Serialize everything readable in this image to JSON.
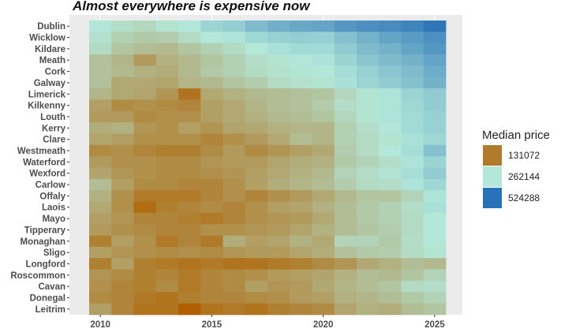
{
  "chart_data": {
    "type": "heatmap",
    "title": "Almost everywhere is expensive now",
    "xlabel": "",
    "ylabel": "",
    "x_ticks": [
      "2010",
      "2015",
      "2020",
      "2025"
    ],
    "x_tick_values": [
      2010,
      2015,
      2020,
      2025
    ],
    "x_range": [
      2009.5,
      2025.5
    ],
    "grid": true,
    "legend": {
      "title": "Median price",
      "placement": "right",
      "scale": "log2",
      "entries": [
        {
          "label": "131072",
          "value": 131072,
          "color": "#b07b2a"
        },
        {
          "label": "262144",
          "value": 262144,
          "color": "#b3e8d9"
        },
        {
          "label": "524288",
          "value": 524288,
          "color": "#2971b8"
        }
      ]
    },
    "years": [
      2010,
      2011,
      2012,
      2013,
      2014,
      2015,
      2016,
      2017,
      2018,
      2019,
      2020,
      2021,
      2022,
      2023,
      2024,
      2025
    ],
    "counties": [
      "Dublin",
      "Wicklow",
      "Kildare",
      "Meath",
      "Cork",
      "Galway",
      "Limerick",
      "Kilkenny",
      "Louth",
      "Kerry",
      "Clare",
      "Westmeath",
      "Waterford",
      "Wexford",
      "Carlow",
      "Offaly",
      "Laois",
      "Mayo",
      "Tipperary",
      "Monaghan",
      "Sligo",
      "Longford",
      "Roscommon",
      "Cavan",
      "Donegal",
      "Leitrim"
    ],
    "values": [
      [
        265000,
        245000,
        235000,
        255000,
        265000,
        295000,
        305000,
        340000,
        365000,
        380000,
        390000,
        420000,
        440000,
        450000,
        470000,
        510000
      ],
      [
        250000,
        225000,
        215000,
        220000,
        240000,
        260000,
        270000,
        290000,
        300000,
        305000,
        300000,
        330000,
        360000,
        390000,
        410000,
        440000
      ],
      [
        240000,
        210000,
        200000,
        195000,
        210000,
        225000,
        240000,
        260000,
        275000,
        285000,
        285000,
        310000,
        340000,
        360000,
        390000,
        420000
      ],
      [
        205000,
        190000,
        160000,
        185000,
        195000,
        210000,
        225000,
        245000,
        255000,
        265000,
        270000,
        295000,
        320000,
        340000,
        360000,
        390000
      ],
      [
        205000,
        195000,
        185000,
        180000,
        195000,
        215000,
        225000,
        240000,
        250000,
        258000,
        260000,
        280000,
        300000,
        320000,
        340000,
        370000
      ],
      [
        205000,
        175000,
        175000,
        170000,
        190000,
        195000,
        210000,
        220000,
        240000,
        250000,
        255000,
        275000,
        295000,
        310000,
        330000,
        360000
      ],
      [
        190000,
        175000,
        170000,
        155000,
        125000,
        175000,
        185000,
        195000,
        200000,
        205000,
        210000,
        235000,
        255000,
        270000,
        295000,
        310000
      ],
      [
        165000,
        145000,
        150000,
        145000,
        140000,
        165000,
        175000,
        190000,
        200000,
        205000,
        220000,
        245000,
        255000,
        270000,
        290000,
        310000
      ],
      [
        160000,
        160000,
        145000,
        150000,
        150000,
        165000,
        175000,
        185000,
        195000,
        200000,
        210000,
        235000,
        255000,
        270000,
        285000,
        300000
      ],
      [
        180000,
        185000,
        155000,
        150000,
        165000,
        155000,
        170000,
        175000,
        185000,
        190000,
        190000,
        225000,
        245000,
        265000,
        285000,
        300000
      ],
      [
        170000,
        165000,
        150000,
        150000,
        150000,
        140000,
        150000,
        160000,
        175000,
        200000,
        190000,
        225000,
        240000,
        255000,
        275000,
        290000
      ],
      [
        145000,
        150000,
        140000,
        135000,
        135000,
        145000,
        160000,
        145000,
        155000,
        165000,
        175000,
        220000,
        240000,
        260000,
        280000,
        330000
      ],
      [
        160000,
        150000,
        150000,
        145000,
        145000,
        155000,
        160000,
        160000,
        170000,
        180000,
        185000,
        215000,
        230000,
        245000,
        270000,
        295000
      ],
      [
        170000,
        155000,
        150000,
        145000,
        145000,
        150000,
        155000,
        165000,
        175000,
        185000,
        195000,
        230000,
        245000,
        255000,
        280000,
        310000
      ],
      [
        200000,
        165000,
        145000,
        145000,
        140000,
        140000,
        150000,
        165000,
        180000,
        190000,
        200000,
        220000,
        240000,
        245000,
        270000,
        290000
      ],
      [
        185000,
        150000,
        130000,
        130000,
        130000,
        140000,
        150000,
        140000,
        150000,
        160000,
        175000,
        195000,
        210000,
        210000,
        230000,
        270000
      ],
      [
        175000,
        150000,
        120000,
        135000,
        140000,
        145000,
        140000,
        150000,
        165000,
        170000,
        185000,
        200000,
        215000,
        225000,
        245000,
        275000
      ],
      [
        165000,
        155000,
        140000,
        140000,
        135000,
        130000,
        140000,
        150000,
        155000,
        160000,
        175000,
        200000,
        215000,
        225000,
        240000,
        260000
      ],
      [
        160000,
        150000,
        145000,
        140000,
        140000,
        150000,
        150000,
        155000,
        160000,
        170000,
        185000,
        200000,
        210000,
        220000,
        240000,
        260000
      ],
      [
        135000,
        165000,
        150000,
        130000,
        140000,
        130000,
        180000,
        165000,
        170000,
        185000,
        175000,
        230000,
        230000,
        215000,
        245000,
        260000
      ],
      [
        165000,
        155000,
        150000,
        145000,
        150000,
        145000,
        155000,
        160000,
        160000,
        170000,
        180000,
        205000,
        215000,
        220000,
        240000,
        255000
      ],
      [
        135000,
        165000,
        135000,
        130000,
        125000,
        130000,
        125000,
        125000,
        130000,
        135000,
        145000,
        155000,
        175000,
        185000,
        200000,
        195000
      ],
      [
        155000,
        145000,
        135000,
        140000,
        130000,
        140000,
        145000,
        150000,
        160000,
        165000,
        170000,
        185000,
        200000,
        195000,
        210000,
        230000
      ],
      [
        150000,
        140000,
        135000,
        145000,
        130000,
        140000,
        145000,
        165000,
        155000,
        160000,
        175000,
        190000,
        200000,
        210000,
        240000,
        245000
      ],
      [
        145000,
        140000,
        130000,
        125000,
        135000,
        140000,
        140000,
        145000,
        150000,
        160000,
        165000,
        185000,
        190000,
        200000,
        215000,
        230000
      ],
      [
        165000,
        140000,
        125000,
        125000,
        110000,
        125000,
        130000,
        125000,
        135000,
        140000,
        145000,
        170000,
        185000,
        180000,
        200000,
        210000
      ]
    ]
  }
}
